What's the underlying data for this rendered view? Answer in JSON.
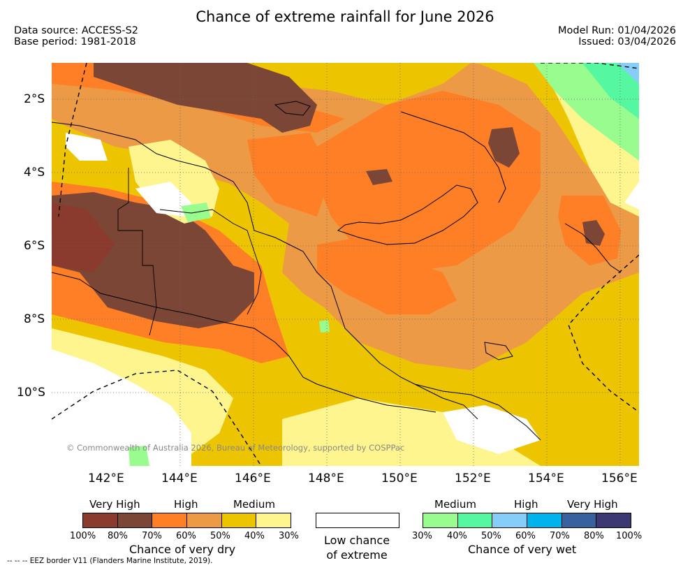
{
  "title": "Chance of extreme rainfall for June 2026",
  "meta": {
    "data_source": "Data source: ACCESS-S2",
    "base_period": "Base period: 1981-2018",
    "model_run": "Model Run: 01/04/2026",
    "issued": "Issued: 03/04/2026"
  },
  "axes": {
    "lon_labels": [
      "142°E",
      "144°E",
      "146°E",
      "148°E",
      "150°E",
      "152°E",
      "154°E",
      "156°E"
    ],
    "lat_labels": [
      "2°S",
      "4°S",
      "6°S",
      "8°S",
      "10°S"
    ]
  },
  "copyright": "© Commonwealth of Australia 2026, Bureau of Meteorology, supported by COSPPac",
  "legend": {
    "dry": {
      "headers": [
        "Very High",
        "High",
        "Medium"
      ],
      "ticks": [
        "100%",
        "80%",
        "70%",
        "60%",
        "50%",
        "40%",
        "30%"
      ],
      "colors": [
        "#8b3a2e",
        "#7b4636",
        "#ff7f27",
        "#ec9a46",
        "#ecc500",
        "#fff58f"
      ],
      "caption": "Chance of very dry"
    },
    "neutral": {
      "caption_line1": "Low chance",
      "caption_line2": "of extreme"
    },
    "wet": {
      "headers": [
        "Medium",
        "High",
        "Very High"
      ],
      "ticks": [
        "30%",
        "40%",
        "50%",
        "60%",
        "70%",
        "80%",
        "100%"
      ],
      "colors": [
        "#99fc8f",
        "#55f7a0",
        "#86cdf9",
        "#00b3ec",
        "#37629f",
        "#3b3874"
      ],
      "caption": "Chance of very wet"
    }
  },
  "eez_note": "-- -- -- EEZ border V11 (Flanders Marine Institute, 2019)."
}
